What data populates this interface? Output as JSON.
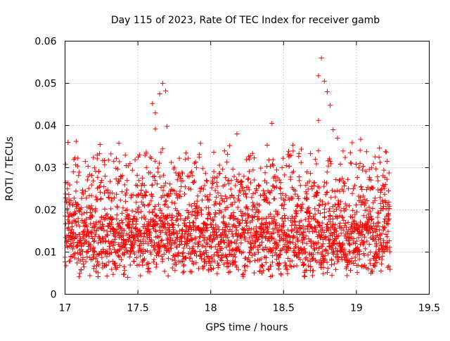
{
  "chart_data": {
    "type": "scatter",
    "title": "Day 115 of 2023, Rate Of TEC Index for receiver gamb",
    "xlabel": "GPS time / hours",
    "ylabel": "ROTI / TECUs",
    "xlim": [
      17,
      19.5
    ],
    "ylim": [
      0,
      0.06
    ],
    "x_ticks": [
      "17",
      "17.5",
      "18",
      "18.5",
      "19",
      "19.5"
    ],
    "y_ticks": [
      "0",
      "0.01",
      "0.02",
      "0.03",
      "0.04",
      "0.05",
      "0.06"
    ],
    "grid": true,
    "marker": "+",
    "color": "#ff0000",
    "series": [
      {
        "name": "ROTI",
        "x_start": 17.0,
        "x_end": 19.23,
        "highlights": [
          {
            "x": 17.02,
            "y": 0.036
          },
          {
            "x": 17.24,
            "y": 0.0355
          },
          {
            "x": 17.37,
            "y": 0.0358
          },
          {
            "x": 17.43,
            "y": 0.004
          },
          {
            "x": 17.6,
            "y": 0.0452
          },
          {
            "x": 17.62,
            "y": 0.0392
          },
          {
            "x": 17.65,
            "y": 0.0475
          },
          {
            "x": 17.67,
            "y": 0.05
          },
          {
            "x": 17.69,
            "y": 0.0482
          },
          {
            "x": 17.7,
            "y": 0.0398
          },
          {
            "x": 17.62,
            "y": 0.043
          },
          {
            "x": 17.93,
            "y": 0.0358
          },
          {
            "x": 18.13,
            "y": 0.0352
          },
          {
            "x": 18.18,
            "y": 0.038
          },
          {
            "x": 18.42,
            "y": 0.0405
          },
          {
            "x": 18.74,
            "y": 0.0518
          },
          {
            "x": 18.76,
            "y": 0.056
          },
          {
            "x": 18.78,
            "y": 0.0505
          },
          {
            "x": 18.8,
            "y": 0.048
          },
          {
            "x": 18.82,
            "y": 0.0448
          },
          {
            "x": 18.74,
            "y": 0.0412
          },
          {
            "x": 18.84,
            "y": 0.039
          },
          {
            "x": 18.87,
            "y": 0.037
          },
          {
            "x": 19.07,
            "y": 0.0338
          },
          {
            "x": 19.2,
            "y": 0.0338
          },
          {
            "x": 19.21,
            "y": 0.0315
          },
          {
            "x": 19.22,
            "y": 0.0245
          },
          {
            "x": 19.1,
            "y": 0.005
          }
        ]
      }
    ]
  }
}
